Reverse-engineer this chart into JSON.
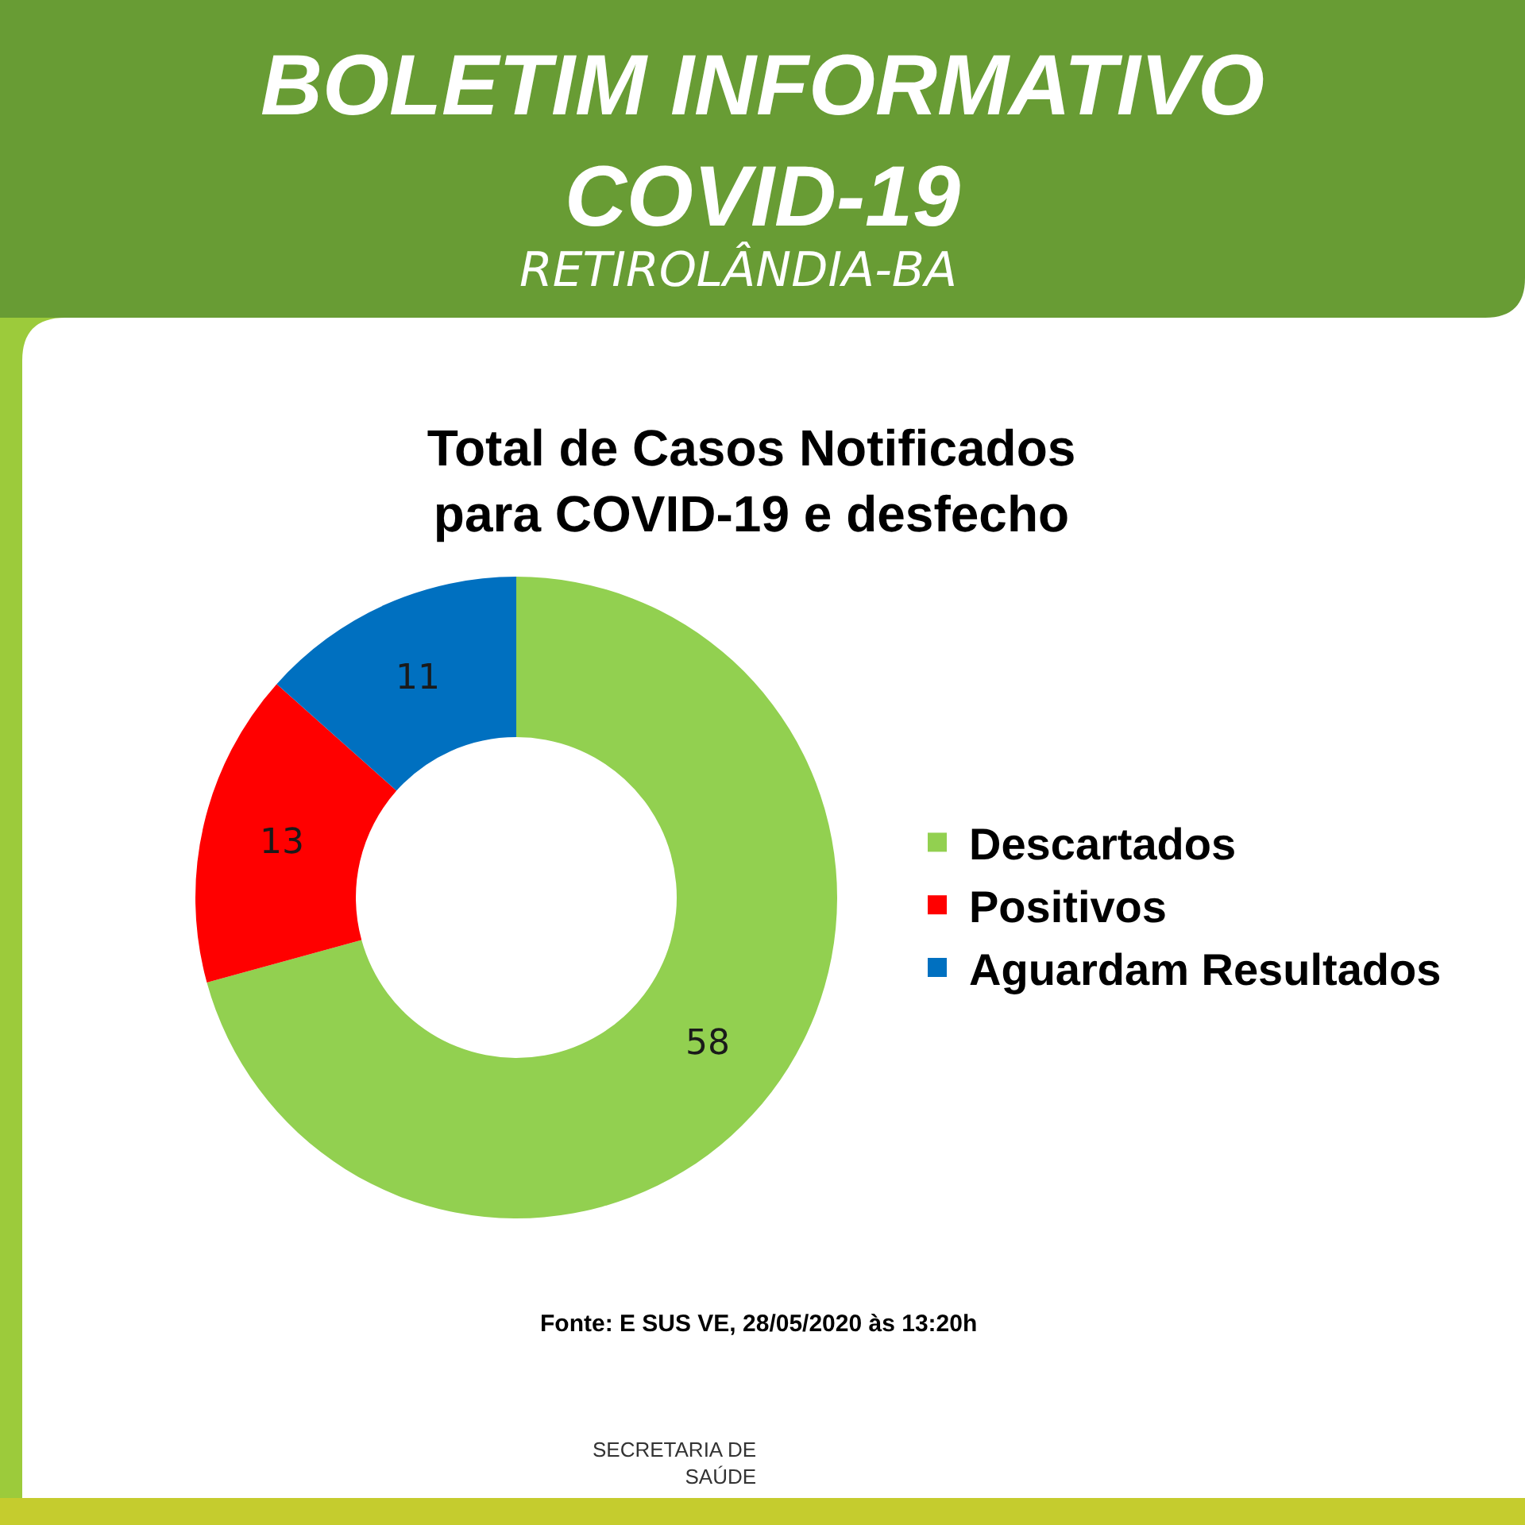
{
  "chart_data": {
    "type": "donut",
    "title": "Total de Casos Notificados\npara COVID-19 e desfecho",
    "categories": [
      "Descartados",
      "Positivos",
      "Aguardam Resultados"
    ],
    "values": [
      58,
      13,
      11
    ],
    "colors": [
      "#92d050",
      "#ff0000",
      "#0070c0"
    ],
    "data_labels": true,
    "legend": "right",
    "annotations": [
      "BOLETIM INFORMATIVO\nCOVID-19",
      "RETIROLÂNDIA-BA",
      "Fonte: E SUS VE, 28/05/2020 às 13:20h",
      "SECRETARIA DE\nSAÚDE"
    ]
  }
}
